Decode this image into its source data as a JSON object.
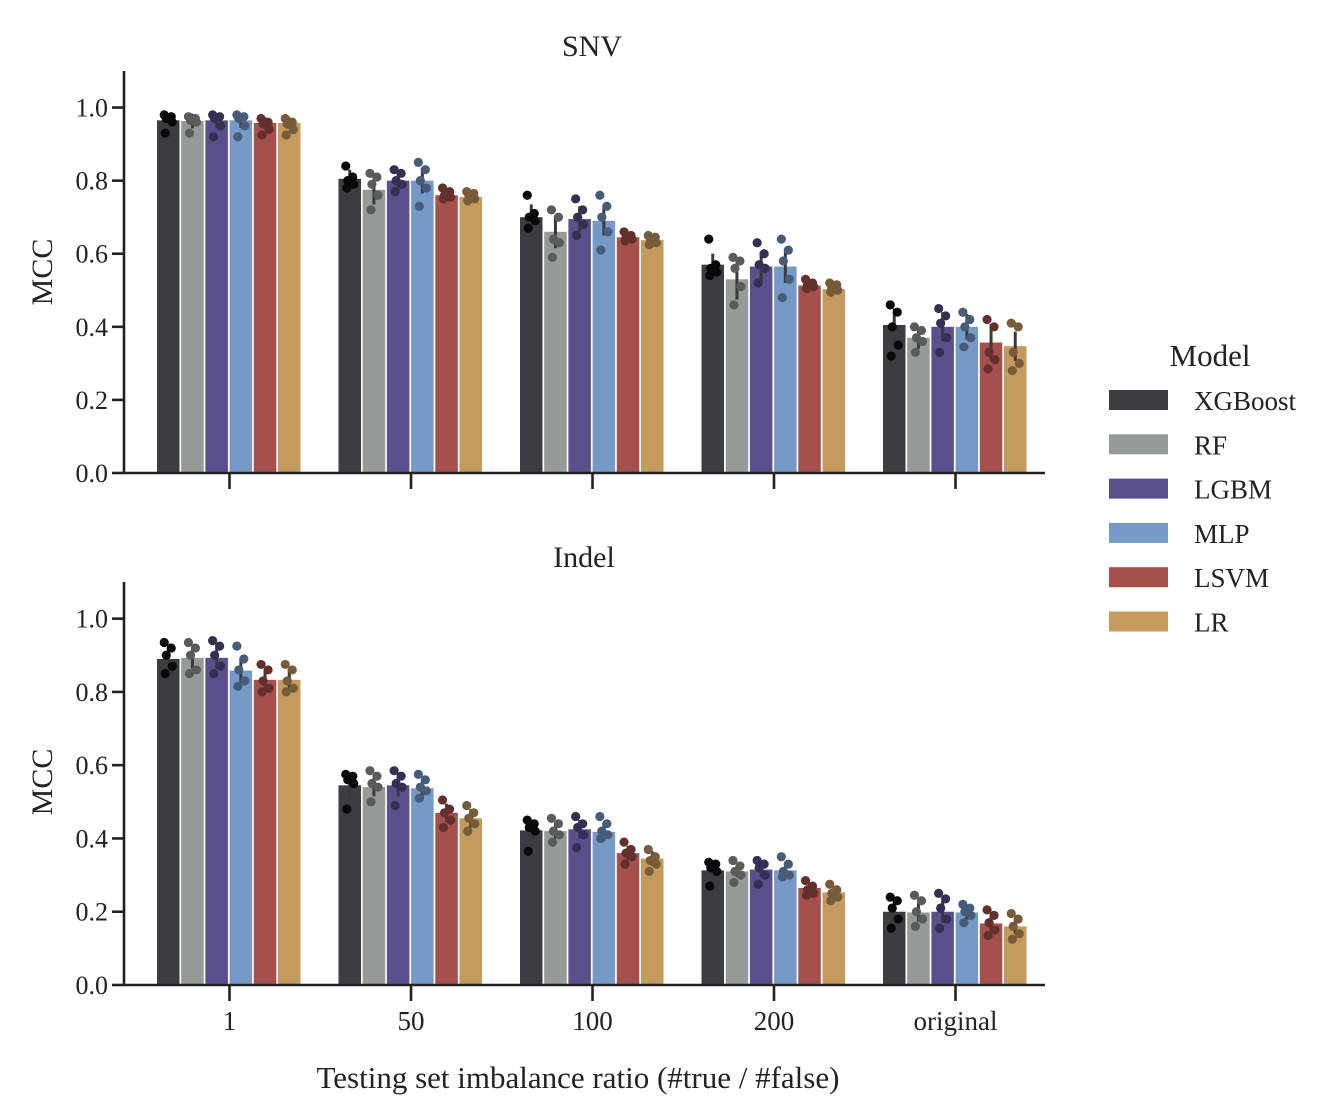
{
  "figure": {
    "xlabel": "Testing set imbalance ratio (#true / #false)",
    "legend": {
      "title": "Model",
      "placement": "right",
      "entries": [
        {
          "label": "XGBoost",
          "color": "#3b3d42"
        },
        {
          "label": "RF",
          "color": "#959b95"
        },
        {
          "label": "LGBM",
          "color": "#5b4e8b"
        },
        {
          "label": "MLP",
          "color": "#7799c8"
        },
        {
          "label": "LSVM",
          "color": "#a5504d"
        },
        {
          "label": "LR",
          "color": "#c49a5e"
        }
      ]
    }
  },
  "chart_data": [
    {
      "type": "bar",
      "title": "SNV",
      "xlabel": "",
      "ylabel": "MCC",
      "ylim": [
        0,
        1.1
      ],
      "yticks": [
        "0.0",
        "0.2",
        "0.4",
        "0.6",
        "0.8",
        "1.0"
      ],
      "categories": [
        "1",
        "50",
        "100",
        "200",
        "original"
      ],
      "show_xtick_labels": false,
      "error_bars": true,
      "replicate_points": true,
      "series": [
        {
          "name": "XGBoost",
          "values": [
            0.965,
            0.805,
            0.7,
            0.57,
            0.405
          ],
          "err": [
            0.02,
            0.025,
            0.035,
            0.03,
            0.045
          ],
          "points": [
            [
              0.98,
              0.975,
              0.97,
              0.96,
              0.93
            ],
            [
              0.84,
              0.81,
              0.8,
              0.79,
              0.78
            ],
            [
              0.76,
              0.71,
              0.7,
              0.69,
              0.67
            ],
            [
              0.64,
              0.57,
              0.56,
              0.55,
              0.54
            ],
            [
              0.46,
              0.44,
              0.4,
              0.35,
              0.32
            ]
          ]
        },
        {
          "name": "RF",
          "values": [
            0.963,
            0.775,
            0.66,
            0.53,
            0.37
          ],
          "err": [
            0.02,
            0.04,
            0.045,
            0.055,
            0.03
          ],
          "points": [
            [
              0.975,
              0.97,
              0.965,
              0.96,
              0.93
            ],
            [
              0.82,
              0.81,
              0.79,
              0.76,
              0.72
            ],
            [
              0.72,
              0.7,
              0.64,
              0.63,
              0.59
            ],
            [
              0.59,
              0.58,
              0.56,
              0.51,
              0.46
            ],
            [
              0.4,
              0.39,
              0.37,
              0.36,
              0.33
            ]
          ]
        },
        {
          "name": "LGBM",
          "values": [
            0.965,
            0.8,
            0.695,
            0.565,
            0.4
          ],
          "err": [
            0.02,
            0.025,
            0.035,
            0.04,
            0.04
          ],
          "points": [
            [
              0.98,
              0.975,
              0.97,
              0.95,
              0.92
            ],
            [
              0.83,
              0.82,
              0.8,
              0.79,
              0.77
            ],
            [
              0.75,
              0.72,
              0.7,
              0.68,
              0.65
            ],
            [
              0.63,
              0.6,
              0.57,
              0.56,
              0.52
            ],
            [
              0.45,
              0.43,
              0.41,
              0.37,
              0.33
            ]
          ]
        },
        {
          "name": "MLP",
          "values": [
            0.965,
            0.8,
            0.69,
            0.565,
            0.4
          ],
          "err": [
            0.02,
            0.035,
            0.04,
            0.045,
            0.035
          ],
          "points": [
            [
              0.98,
              0.975,
              0.97,
              0.95,
              0.92
            ],
            [
              0.85,
              0.83,
              0.8,
              0.78,
              0.73
            ],
            [
              0.76,
              0.73,
              0.7,
              0.66,
              0.61
            ],
            [
              0.64,
              0.61,
              0.58,
              0.53,
              0.48
            ],
            [
              0.44,
              0.42,
              0.4,
              0.37,
              0.345
            ]
          ]
        },
        {
          "name": "LSVM",
          "values": [
            0.958,
            0.76,
            0.645,
            0.513,
            0.357
          ],
          "err": [
            0.015,
            0.015,
            0.012,
            0.01,
            0.05
          ],
          "points": [
            [
              0.97,
              0.96,
              0.955,
              0.94,
              0.925
            ],
            [
              0.78,
              0.77,
              0.76,
              0.755,
              0.75
            ],
            [
              0.66,
              0.65,
              0.645,
              0.64,
              0.635
            ],
            [
              0.53,
              0.52,
              0.515,
              0.51,
              0.505
            ],
            [
              0.42,
              0.4,
              0.33,
              0.31,
              0.285
            ]
          ]
        },
        {
          "name": "LR",
          "values": [
            0.958,
            0.755,
            0.637,
            0.503,
            0.347
          ],
          "err": [
            0.015,
            0.012,
            0.012,
            0.01,
            0.04
          ],
          "points": [
            [
              0.97,
              0.96,
              0.955,
              0.94,
              0.925
            ],
            [
              0.77,
              0.765,
              0.76,
              0.75,
              0.745
            ],
            [
              0.65,
              0.645,
              0.64,
              0.63,
              0.625
            ],
            [
              0.52,
              0.515,
              0.505,
              0.5,
              0.495
            ],
            [
              0.41,
              0.4,
              0.33,
              0.3,
              0.28
            ]
          ]
        }
      ]
    },
    {
      "type": "bar",
      "title": "Indel",
      "xlabel": "Testing set imbalance ratio (#true / #false)",
      "ylabel": "MCC",
      "ylim": [
        0,
        1.1
      ],
      "yticks": [
        "0.0",
        "0.2",
        "0.4",
        "0.6",
        "0.8",
        "1.0"
      ],
      "categories": [
        "1",
        "50",
        "100",
        "200",
        "original"
      ],
      "show_xtick_labels": true,
      "error_bars": true,
      "replicate_points": true,
      "series": [
        {
          "name": "XGBoost",
          "values": [
            0.89,
            0.545,
            0.422,
            0.313,
            0.2
          ],
          "err": [
            0.03,
            0.035,
            0.025,
            0.02,
            0.03
          ],
          "points": [
            [
              0.935,
              0.92,
              0.9,
              0.87,
              0.85
            ],
            [
              0.575,
              0.57,
              0.56,
              0.55,
              0.48
            ],
            [
              0.45,
              0.44,
              0.43,
              0.42,
              0.365
            ],
            [
              0.335,
              0.33,
              0.32,
              0.31,
              0.27
            ],
            [
              0.24,
              0.23,
              0.21,
              0.18,
              0.155
            ]
          ]
        },
        {
          "name": "RF",
          "values": [
            0.893,
            0.54,
            0.42,
            0.31,
            0.198
          ],
          "err": [
            0.03,
            0.025,
            0.02,
            0.015,
            0.025
          ],
          "points": [
            [
              0.935,
              0.92,
              0.9,
              0.86,
              0.85
            ],
            [
              0.585,
              0.57,
              0.55,
              0.54,
              0.5
            ],
            [
              0.455,
              0.44,
              0.42,
              0.41,
              0.39
            ],
            [
              0.34,
              0.325,
              0.31,
              0.3,
              0.28
            ],
            [
              0.245,
              0.23,
              0.2,
              0.18,
              0.16
            ]
          ]
        },
        {
          "name": "LGBM",
          "values": [
            0.893,
            0.545,
            0.425,
            0.315,
            0.2
          ],
          "err": [
            0.03,
            0.03,
            0.025,
            0.02,
            0.03
          ],
          "points": [
            [
              0.94,
              0.925,
              0.9,
              0.87,
              0.85
            ],
            [
              0.585,
              0.57,
              0.55,
              0.54,
              0.49
            ],
            [
              0.46,
              0.44,
              0.43,
              0.41,
              0.375
            ],
            [
              0.34,
              0.33,
              0.32,
              0.3,
              0.275
            ],
            [
              0.25,
              0.235,
              0.21,
              0.18,
              0.155
            ]
          ]
        },
        {
          "name": "MLP",
          "values": [
            0.858,
            0.537,
            0.418,
            0.313,
            0.198
          ],
          "err": [
            0.035,
            0.025,
            0.025,
            0.02,
            0.02
          ],
          "points": [
            [
              0.925,
              0.89,
              0.86,
              0.83,
              0.815
            ],
            [
              0.575,
              0.56,
              0.54,
              0.53,
              0.51
            ],
            [
              0.46,
              0.44,
              0.42,
              0.41,
              0.4
            ],
            [
              0.35,
              0.33,
              0.31,
              0.3,
              0.295
            ],
            [
              0.22,
              0.21,
              0.2,
              0.19,
              0.17
            ]
          ]
        },
        {
          "name": "LSVM",
          "values": [
            0.833,
            0.47,
            0.36,
            0.265,
            0.168
          ],
          "err": [
            0.03,
            0.025,
            0.02,
            0.015,
            0.02
          ],
          "points": [
            [
              0.875,
              0.86,
              0.83,
              0.81,
              0.8
            ],
            [
              0.505,
              0.48,
              0.47,
              0.45,
              0.43
            ],
            [
              0.39,
              0.37,
              0.36,
              0.35,
              0.33
            ],
            [
              0.285,
              0.27,
              0.26,
              0.25,
              0.245
            ],
            [
              0.205,
              0.19,
              0.17,
              0.15,
              0.135
            ]
          ]
        },
        {
          "name": "LR",
          "values": [
            0.833,
            0.455,
            0.345,
            0.253,
            0.16
          ],
          "err": [
            0.03,
            0.025,
            0.02,
            0.015,
            0.02
          ],
          "points": [
            [
              0.875,
              0.86,
              0.83,
              0.81,
              0.8
            ],
            [
              0.49,
              0.47,
              0.455,
              0.44,
              0.42
            ],
            [
              0.37,
              0.35,
              0.34,
              0.33,
              0.31
            ],
            [
              0.275,
              0.26,
              0.25,
              0.24,
              0.23
            ],
            [
              0.195,
              0.18,
              0.16,
              0.14,
              0.125
            ]
          ]
        }
      ]
    }
  ]
}
